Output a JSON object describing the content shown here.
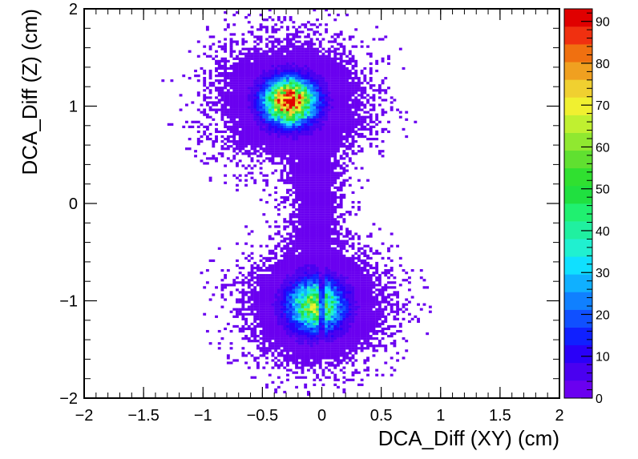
{
  "chart_data": {
    "type": "heatmap",
    "title": "",
    "xlabel": "DCA_Diff (XY) (cm)",
    "ylabel": "DCA_Diff (Z) (cm)",
    "xlim": [
      -2,
      2
    ],
    "ylim": [
      -2,
      2
    ],
    "x_ticks": [
      -2,
      -1.5,
      -1,
      -0.5,
      0,
      0.5,
      1,
      1.5,
      2
    ],
    "y_ticks": [
      -2,
      -1,
      0,
      1,
      2
    ],
    "x_tick_labels": [
      "−2",
      "−1.5",
      "−1",
      "−0.5",
      "0",
      "0.5",
      "1",
      "1.5",
      "2"
    ],
    "y_tick_labels": [
      "−2",
      "−1",
      "0",
      "1",
      "2"
    ],
    "grid": false,
    "colorbar": {
      "min": 0,
      "max": 93,
      "ticks": [
        0,
        10,
        20,
        30,
        40,
        50,
        60,
        70,
        80,
        90
      ],
      "tick_labels": [
        "0",
        "10",
        "20",
        "30",
        "40",
        "50",
        "60",
        "70",
        "80",
        "90"
      ],
      "palette": [
        "#6a00f0",
        "#4a00f0",
        "#2a00f8",
        "#1020ff",
        "#1050ff",
        "#1080ff",
        "#10b0ff",
        "#10e0ff",
        "#20f0d0",
        "#20f0a0",
        "#20f070",
        "#20e040",
        "#30e030",
        "#60e030",
        "#90e830",
        "#c0f030",
        "#f0f030",
        "#f0d030",
        "#f0a020",
        "#f07010",
        "#f03010",
        "#e00000"
      ]
    },
    "clusters": [
      {
        "label": "upper",
        "center_x": -0.27,
        "center_y": 1.05,
        "sigma_x": 0.13,
        "sigma_y": 0.14,
        "peak": 93,
        "tail_sigma": 0.35
      },
      {
        "label": "lower",
        "center_x": -0.05,
        "center_y": -1.05,
        "sigma_x": 0.14,
        "sigma_y": 0.16,
        "peak": 58,
        "tail_sigma": 0.33,
        "gap_at_x": 0.0
      },
      {
        "label": "bridge",
        "center_x": -0.05,
        "center_y": 0.0,
        "sigma_x": 0.12,
        "sigma_y": 0.45,
        "peak": 2
      }
    ]
  }
}
